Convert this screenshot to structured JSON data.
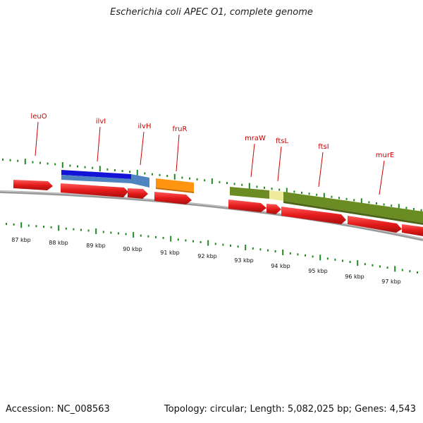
{
  "title": "Escherichia coli APEC O1, complete genome",
  "accession": "Accession: NC_008563",
  "summary": "Topology: circular; Length: 5,082,025 bp; Genes: 4,543",
  "colors": {
    "gene": "#e31b1b",
    "tick": "#1f8a1f",
    "label": "#cc0000",
    "backbone": "#888888",
    "ilvI_top": "#1414d8",
    "ilvI_bar": "#4f84c0",
    "fruR": "#ff9410",
    "olive": "#6b8c23",
    "pale": "#eeeb9a"
  },
  "scale_labels": [
    "87 kbp",
    "88 kbp",
    "89 kbp",
    "90 kbp",
    "91 kbp",
    "92 kbp",
    "93 kbp",
    "94 kbp",
    "95 kbp",
    "96 kbp",
    "97 kbp"
  ],
  "gene_labels": [
    {
      "name": "leuO"
    },
    {
      "name": "ilvI"
    },
    {
      "name": "ilvH"
    },
    {
      "name": "fruR"
    },
    {
      "name": "mraW"
    },
    {
      "name": "ftsL"
    },
    {
      "name": "ftsI"
    },
    {
      "name": "murE"
    }
  ]
}
